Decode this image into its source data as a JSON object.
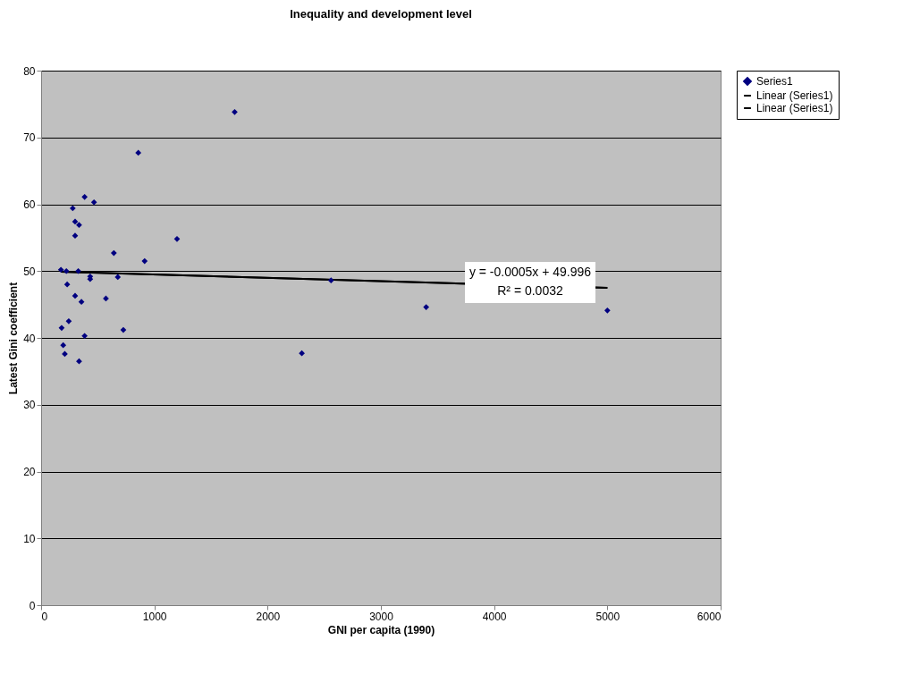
{
  "chart_data": {
    "type": "scatter",
    "title": "Inequality and development level",
    "xlabel": "GNI per capita (1990)",
    "ylabel": "Latest Gini coefficient",
    "xlim": [
      0,
      6000
    ],
    "xticks": [
      0,
      1000,
      2000,
      3000,
      4000,
      5000,
      6000
    ],
    "ylim": [
      0,
      80
    ],
    "yticks": [
      0,
      10,
      20,
      30,
      40,
      50,
      60,
      70,
      80
    ],
    "grid": "y",
    "legend": "right",
    "annotations": [
      "y = -0.0005x + 49.996",
      "R² = 0.0032"
    ],
    "series": [
      {
        "name": "Series1",
        "marker": "diamond",
        "color": "#000080",
        "x": [
          175,
          181,
          195,
          209,
          230,
          223,
          244,
          279,
          300,
          335,
          300,
          300,
          328,
          356,
          335,
          384,
          384,
          467,
          433,
          433,
          572,
          642,
          677,
          726,
          858,
          914,
          1200,
          1709,
          2302,
          2560,
          3400,
          5000
        ],
        "values": [
          50.2,
          41.5,
          38.9,
          37.6,
          48.0,
          50.0,
          42.5,
          59.4,
          57.4,
          56.9,
          55.3,
          46.3,
          50.0,
          45.4,
          36.5,
          61.1,
          40.3,
          60.3,
          49.2,
          48.8,
          45.9,
          52.7,
          49.1,
          41.2,
          67.7,
          51.5,
          54.8,
          73.8,
          37.7,
          48.6,
          44.6,
          44.1
        ]
      },
      {
        "name": "Linear (Series1)",
        "type": "line",
        "marker": "none",
        "color": "#000000",
        "x": [
          175,
          5000
        ],
        "values": [
          49.9,
          47.5
        ]
      },
      {
        "name": "Linear (Series1)",
        "type": "line",
        "marker": "none",
        "color": "#000000",
        "x": [
          175,
          5000
        ],
        "values": [
          49.9,
          47.5
        ]
      }
    ]
  }
}
